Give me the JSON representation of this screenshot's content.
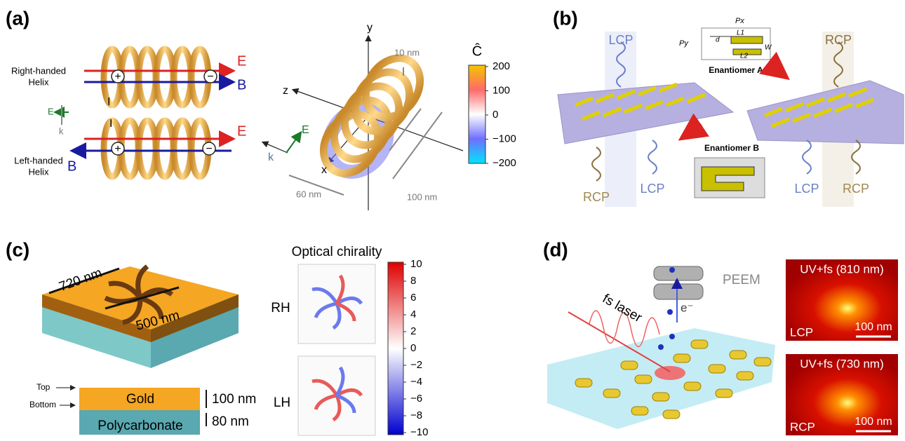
{
  "panel_a": {
    "label": "(a)",
    "right_helix": [
      "Right-handed",
      "Helix"
    ],
    "left_helix": [
      "Left-handed",
      "Helix"
    ],
    "top_E": "E",
    "top_B": "B",
    "bottom_E": "E",
    "bottom_B": "B",
    "current_top": "I",
    "current_bottom": "I",
    "plus_top": "+",
    "minus_top": "−",
    "plus_bottom": "+",
    "minus_bottom": "−",
    "side_E": "E",
    "side_k": "k",
    "axis_y": "y",
    "axis_z": "z",
    "axis_x": "x",
    "wave_E": "E",
    "wave_k": "k",
    "dim_wire": "10 nm",
    "dim_length": "100 nm",
    "dim_width": "60 nm",
    "colorbar_title": "Ĉ",
    "colorbar_ticks": [
      "200",
      "100",
      "0",
      "−100",
      "−200"
    ]
  },
  "panel_b": {
    "label": "(b)",
    "top_left": "LCP",
    "top_right": "RCP",
    "inset_labels": [
      "Px",
      "Py",
      "L1",
      "L2",
      "d",
      "W"
    ],
    "enantiomer_a": "Enantiomer A",
    "enantiomer_b": "Enantiomer B",
    "bottom_labels": [
      "RCP",
      "LCP",
      "LCP",
      "RCP"
    ]
  },
  "panel_c": {
    "label": "(c)",
    "dim_outer": "720 nm",
    "dim_inner": "500 nm",
    "top": "Top",
    "bottom": "Bottom",
    "gold": "Gold",
    "substrate": "Polycarbonate",
    "gold_thickness": "100 nm",
    "substrate_thickness": "80 nm",
    "map_title": "Optical chirality",
    "rows": [
      "RH",
      "LH"
    ],
    "colorbar_ticks": [
      "10",
      "8",
      "6",
      "4",
      "2",
      "0",
      "−2",
      "−4",
      "−6",
      "−8",
      "−10"
    ]
  },
  "panel_d": {
    "label": "(d)",
    "laser": "fs laser",
    "microscope": "PEEM",
    "electron": "e⁻",
    "images": [
      {
        "title": "UV+fs (810 nm)",
        "polarization": "LCP",
        "scale": "100 nm"
      },
      {
        "title": "UV+fs (730 nm)",
        "polarization": "RCP",
        "scale": "100 nm"
      }
    ]
  }
}
